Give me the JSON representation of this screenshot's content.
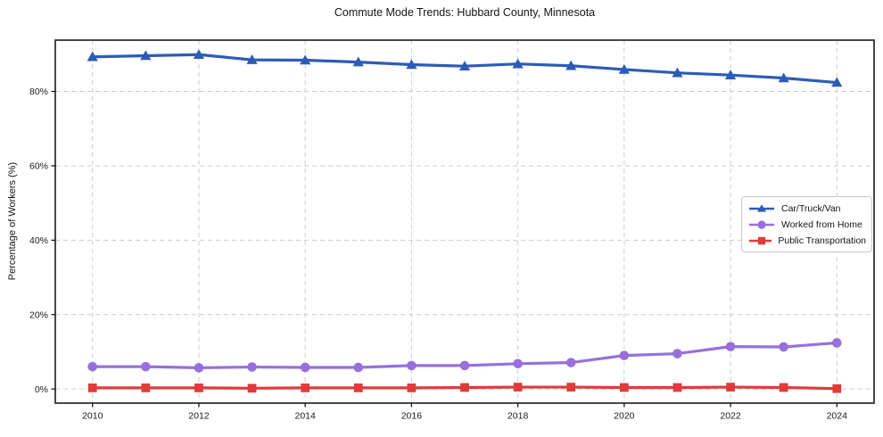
{
  "chart_data": {
    "type": "line",
    "title": "Commute Mode Trends: Hubbard County, Minnesota",
    "ylabel": "Percentage of Workers (%)",
    "xlabel": "",
    "x": [
      2010,
      2011,
      2012,
      2013,
      2014,
      2015,
      2016,
      2017,
      2018,
      2019,
      2020,
      2021,
      2022,
      2023,
      2024
    ],
    "series": [
      {
        "name": "Car/Truck/Van",
        "marker": "triangle-up",
        "color": "#2d5bb8",
        "values": [
          89.3,
          89.6,
          89.9,
          88.5,
          88.4,
          87.9,
          87.2,
          86.8,
          87.4,
          86.9,
          85.9,
          85.0,
          84.4,
          83.6,
          82.4
        ]
      },
      {
        "name": "Worked from Home",
        "marker": "circle",
        "color": "#9770db",
        "values": [
          6.0,
          6.0,
          5.7,
          5.9,
          5.8,
          5.8,
          6.3,
          6.3,
          6.8,
          7.1,
          9.0,
          9.5,
          11.4,
          11.3,
          12.4
        ]
      },
      {
        "name": "Public Transportation",
        "marker": "square",
        "color": "#e03b3b",
        "values": [
          0.3,
          0.3,
          0.3,
          0.2,
          0.3,
          0.3,
          0.3,
          0.4,
          0.5,
          0.5,
          0.4,
          0.4,
          0.5,
          0.4,
          0.1
        ]
      }
    ],
    "x_ticks": {
      "values": [
        2010,
        2012,
        2014,
        2016,
        2018,
        2020,
        2022,
        2024
      ],
      "labels": [
        "2010",
        "2012",
        "2014",
        "2016",
        "2018",
        "2020",
        "2022",
        "2024"
      ]
    },
    "y_ticks": {
      "values": [
        0,
        20,
        40,
        60,
        80
      ],
      "labels": [
        "0%",
        "20%",
        "40%",
        "60%",
        "80%"
      ]
    },
    "xlim": [
      2009.3,
      2024.7
    ],
    "ylim": [
      -3.8,
      93.8
    ],
    "grid": true,
    "grid_line_style": "dashed",
    "grid_color": "#cccccc",
    "axis_color": "#1a1a1a",
    "legend_position": "center-right"
  }
}
